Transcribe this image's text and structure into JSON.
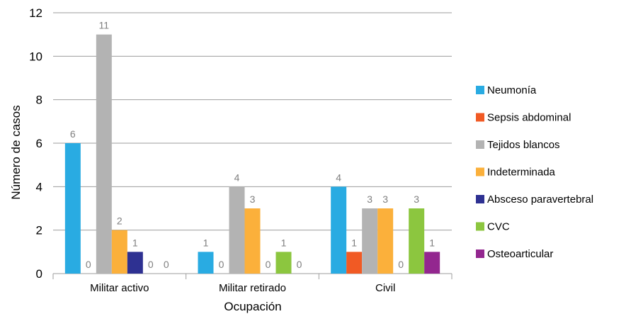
{
  "chart_data": {
    "type": "bar",
    "title": "",
    "xlabel": "Ocupación",
    "ylabel": "Número de casos",
    "ylim": [
      0,
      12
    ],
    "yticks": [
      "0",
      "2",
      "4",
      "6",
      "8",
      "10",
      "12"
    ],
    "grid": true,
    "legend_position": "right",
    "categories": [
      "Militar activo",
      "Militar retirado",
      "Civil"
    ],
    "series": [
      {
        "name": "Neumonía",
        "color": "#29abe2",
        "values": [
          6,
          1,
          4
        ]
      },
      {
        "name": "Sepsis abdominal",
        "color": "#f15a24",
        "values": [
          0,
          0,
          1
        ]
      },
      {
        "name": "Tejidos blancos",
        "color": "#b3b3b3",
        "values": [
          11,
          4,
          3
        ]
      },
      {
        "name": "Indeterminada",
        "color": "#fbb03b",
        "values": [
          2,
          3,
          3
        ]
      },
      {
        "name": "Absceso paravertebral",
        "color": "#2e3192",
        "values": [
          1,
          0,
          0
        ]
      },
      {
        "name": "CVC",
        "color": "#8cc63f",
        "values": [
          0,
          1,
          3
        ]
      },
      {
        "name": "Osteoarticular",
        "color": "#93278f",
        "values": [
          0,
          0,
          1
        ]
      }
    ]
  }
}
